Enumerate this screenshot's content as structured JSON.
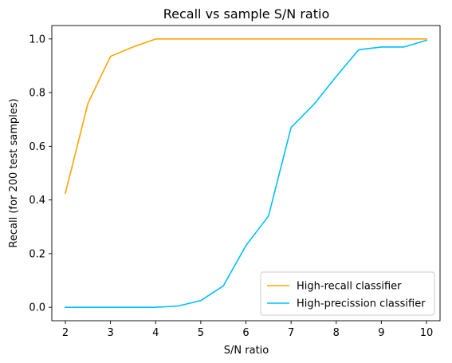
{
  "chart_data": {
    "type": "line",
    "title": "Recall vs sample S/N ratio",
    "xlabel": "S/N ratio",
    "ylabel": "Recall (for 200 test samples)",
    "xlim": [
      1.7,
      10.3
    ],
    "ylim": [
      -0.05,
      1.05
    ],
    "x_ticks": [
      2,
      3,
      4,
      5,
      6,
      7,
      8,
      9,
      10
    ],
    "x_tick_labels": [
      "2",
      "3",
      "4",
      "5",
      "6",
      "7",
      "8",
      "9",
      "10"
    ],
    "y_ticks": [
      0.0,
      0.2,
      0.4,
      0.6,
      0.8,
      1.0
    ],
    "y_tick_labels": [
      "0.0",
      "0.2",
      "0.4",
      "0.6",
      "0.8",
      "1.0"
    ],
    "grid": false,
    "legend_position": "lower-right",
    "x": [
      2,
      2.5,
      3,
      3.5,
      4,
      4.5,
      5,
      5.5,
      6,
      6.5,
      7,
      7.5,
      8,
      8.5,
      9,
      9.5,
      10
    ],
    "series": [
      {
        "name": "High-recall classifier",
        "color": "#ffa500",
        "values": [
          0.425,
          0.76,
          0.935,
          0.97,
          1.0,
          1.0,
          1.0,
          1.0,
          1.0,
          1.0,
          1.0,
          1.0,
          1.0,
          1.0,
          1.0,
          1.0,
          1.0
        ]
      },
      {
        "name": "High-precission classifier",
        "color": "#00bfff",
        "values": [
          0.0,
          0.0,
          0.0,
          0.0,
          0.0,
          0.005,
          0.025,
          0.08,
          0.23,
          0.34,
          0.67,
          0.755,
          0.86,
          0.96,
          0.97,
          0.97,
          0.995
        ]
      }
    ]
  }
}
